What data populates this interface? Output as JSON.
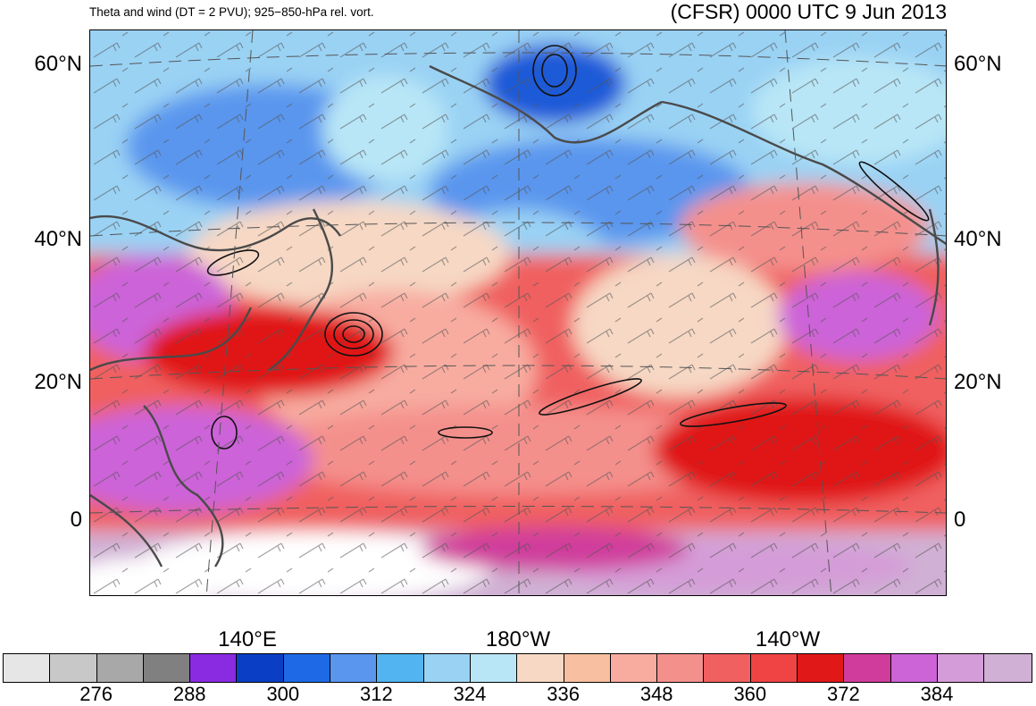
{
  "header": {
    "left_title": "Theta and wind (DT = 2 PVU); 925−850-hPa rel. vort.",
    "right_title": "(CFSR) 0000 UTC 9 Jun 2013"
  },
  "axes": {
    "lat_labels": [
      "60°N",
      "40°N",
      "20°N",
      "0"
    ],
    "lon_labels": [
      "140°E",
      "180°W",
      "140°W"
    ]
  },
  "colorbar": {
    "colors": [
      "#e6e6e6",
      "#c8c8c8",
      "#a8a8a8",
      "#808080",
      "#8a2be2",
      "#0a3ec4",
      "#1e6ae6",
      "#5a96ee",
      "#52b4f0",
      "#9ad2f4",
      "#b8e6f6",
      "#f6d8c4",
      "#f8c0a0",
      "#f8aca0",
      "#f4908c",
      "#f06060",
      "#f04444",
      "#e01818",
      "#d03c9c",
      "#cc64d8",
      "#d49cd8",
      "#d0b0d4"
    ],
    "labels": [
      "276",
      "288",
      "300",
      "312",
      "324",
      "336",
      "348",
      "360",
      "372",
      "384"
    ]
  },
  "legend": {
    "colors": {
      "cold_deep": "#1e5ad8",
      "cold": "#5a96ee",
      "cool": "#9ad2f4",
      "neutral": "#f6d8c4",
      "warm": "#f4908c",
      "hot": "#f04444",
      "very_hot": "#d03c9c",
      "extreme": "#d0b0d4"
    }
  }
}
